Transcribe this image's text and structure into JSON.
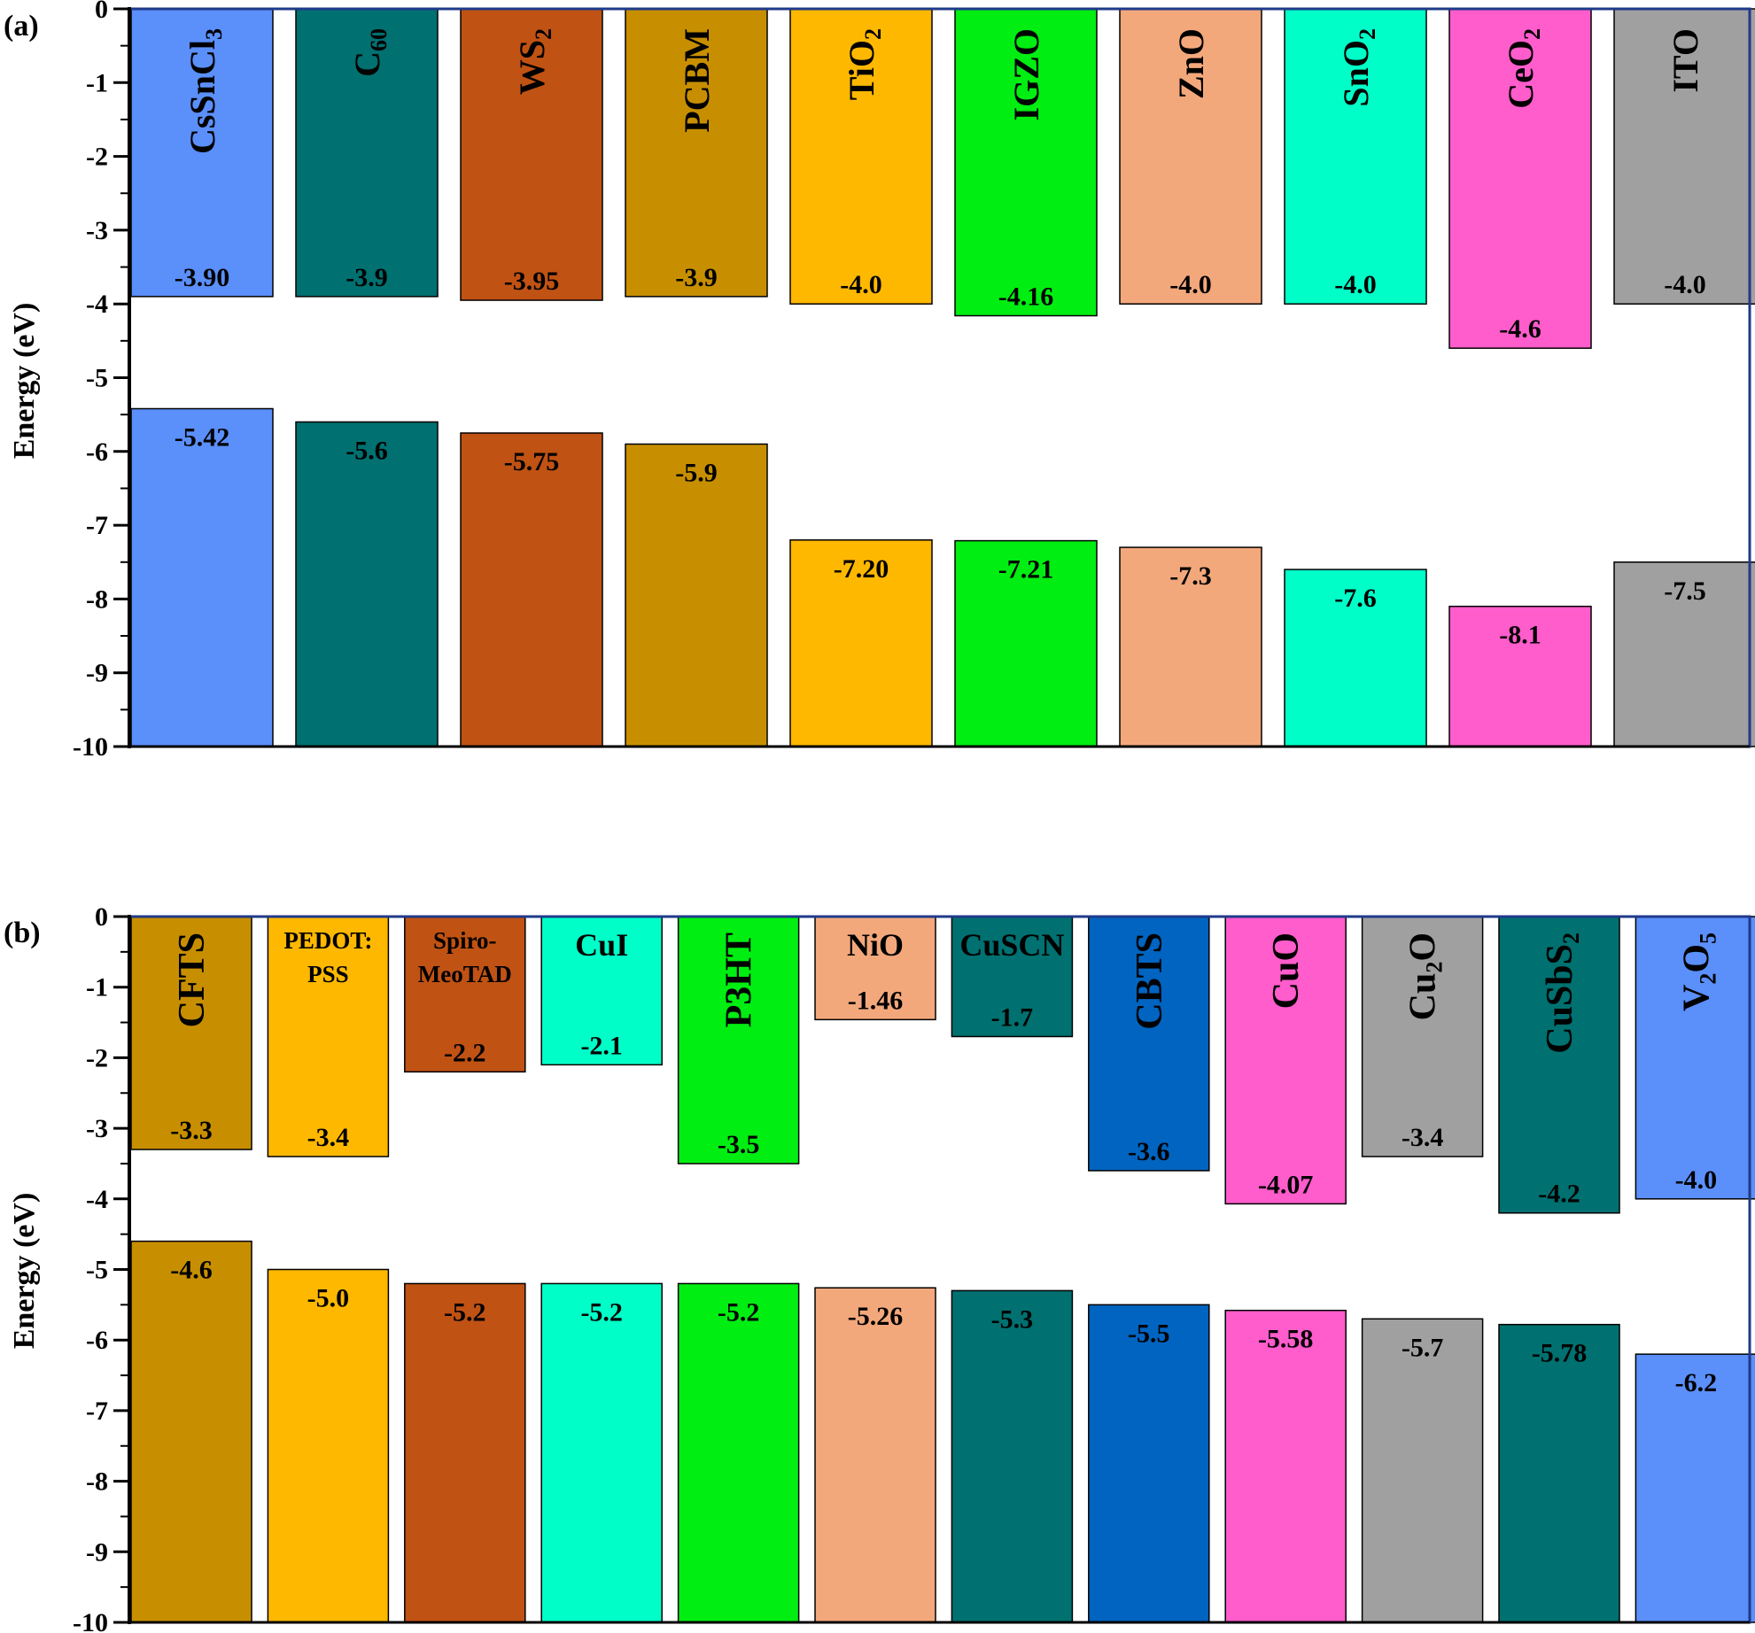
{
  "chart_data": [
    {
      "type": "bar",
      "panel_label": "(a)",
      "ylabel": "Energy (eV)",
      "ylim": [
        -10,
        0
      ],
      "yticks": [
        "0",
        "-1",
        "-2",
        "-3",
        "-4",
        "-5",
        "-6",
        "-7",
        "-8",
        "-9",
        "-10"
      ],
      "grid": false,
      "materials": [
        {
          "name": "CsSnCl3",
          "sub": "3",
          "base": "CsSnCl",
          "cb": -3.9,
          "cb_label": "-3.90",
          "vb": -5.42,
          "vb_label": "-5.42",
          "color": "#5b8ff9"
        },
        {
          "name": "C60",
          "sub": "60",
          "base": "C",
          "cb": -3.9,
          "cb_label": "-3.9",
          "vb": -5.6,
          "vb_label": "-5.6",
          "color": "#007070"
        },
        {
          "name": "WS2",
          "sub": "2",
          "base": "WS",
          "cb": -3.95,
          "cb_label": "-3.95",
          "vb": -5.75,
          "vb_label": "-5.75",
          "color": "#c05214"
        },
        {
          "name": "PCBM",
          "sub": "",
          "base": "PCBM",
          "cb": -3.9,
          "cb_label": "-3.9",
          "vb": -5.9,
          "vb_label": "-5.9",
          "color": "#c78f00"
        },
        {
          "name": "TiO2",
          "sub": "2",
          "base": "TiO",
          "cb": -4.0,
          "cb_label": "-4.0",
          "vb": -7.2,
          "vb_label": "-7.20",
          "color": "#ffb800"
        },
        {
          "name": "IGZO",
          "sub": "",
          "base": "IGZO",
          "cb": -4.16,
          "cb_label": "-4.16",
          "vb": -7.21,
          "vb_label": "-7.21",
          "color": "#00ee11"
        },
        {
          "name": "ZnO",
          "sub": "",
          "base": "ZnO",
          "cb": -4.0,
          "cb_label": "-4.0",
          "vb": -7.3,
          "vb_label": "-7.3",
          "color": "#f3a87c"
        },
        {
          "name": "SnO2",
          "sub": "2",
          "base": "SnO",
          "cb": -4.0,
          "cb_label": "-4.0",
          "vb": -7.6,
          "vb_label": "-7.6",
          "color": "#00ffc8"
        },
        {
          "name": "CeO2",
          "sub": "2",
          "base": "CeO",
          "cb": -4.6,
          "cb_label": "-4.6",
          "vb": -8.1,
          "vb_label": "-8.1",
          "color": "#ff5ccc"
        },
        {
          "name": "ITO",
          "sub": "",
          "base": "ITO",
          "cb": -4.0,
          "cb_label": "-4.0",
          "vb": -7.5,
          "vb_label": "-7.5",
          "color": "#a0a0a0"
        }
      ]
    },
    {
      "type": "bar",
      "panel_label": "(b)",
      "ylabel": "Energy (eV)",
      "ylim": [
        -10,
        0
      ],
      "yticks": [
        "0",
        "-1",
        "-2",
        "-3",
        "-4",
        "-5",
        "-6",
        "-7",
        "-8",
        "-9",
        "-10"
      ],
      "grid": false,
      "materials": [
        {
          "name": "CFTS",
          "base": "CFTS",
          "sub": "",
          "cb": -3.3,
          "cb_label": "-3.3",
          "vb": -4.6,
          "vb_label": "-4.6",
          "color": "#c78f00"
        },
        {
          "name": "PEDOT:PSS",
          "line1": "PEDOT:",
          "line2": "PSS",
          "cb": -3.4,
          "cb_label": "-3.4",
          "vb": -5.0,
          "vb_label": "-5.0",
          "color": "#ffb800"
        },
        {
          "name": "Spiro-MeoTAD",
          "line1": "Spiro-",
          "line2": "MeoTAD",
          "cb": -2.2,
          "cb_label": "-2.2",
          "vb": -5.2,
          "vb_label": "-5.2",
          "color": "#c05214"
        },
        {
          "name": "CuI",
          "line1": "CuI",
          "cb": -2.1,
          "cb_label": "-2.1",
          "vb": -5.2,
          "vb_label": "-5.2",
          "color": "#00ffc8"
        },
        {
          "name": "P3HT",
          "base": "P3HT",
          "sub": "",
          "cb": -3.5,
          "cb_label": "-3.5",
          "vb": -5.2,
          "vb_label": "-5.2",
          "color": "#00ee11"
        },
        {
          "name": "NiO",
          "line1": "NiO",
          "cb": -1.46,
          "cb_label": "-1.46",
          "vb": -5.26,
          "vb_label": "-5.26",
          "color": "#f3a87c"
        },
        {
          "name": "CuSCN",
          "line1": "CuSCN",
          "cb": -1.7,
          "cb_label": "-1.7",
          "vb": -5.3,
          "vb_label": "-5.3",
          "color": "#007070"
        },
        {
          "name": "CBTS",
          "base": "CBTS",
          "sub": "",
          "cb": -3.6,
          "cb_label": "-3.6",
          "vb": -5.5,
          "vb_label": "-5.5",
          "color": "#0064c0"
        },
        {
          "name": "CuO",
          "base": "CuO",
          "sub": "",
          "cb": -4.07,
          "cb_label": "-4.07",
          "vb": -5.58,
          "vb_label": "-5.58",
          "color": "#ff5ccc"
        },
        {
          "name": "Cu2O",
          "base": "Cu",
          "sub": "2",
          "tail": "O",
          "cb": -3.4,
          "cb_label": "-3.4",
          "vb": -5.7,
          "vb_label": "-5.7",
          "color": "#a0a0a0"
        },
        {
          "name": "CuSbS2",
          "base": "CuSbS",
          "sub": "2",
          "cb": -4.2,
          "cb_label": "-4.2",
          "vb": -5.78,
          "vb_label": "-5.78",
          "color": "#007070"
        },
        {
          "name": "V2O5",
          "base": "V",
          "sub": "2",
          "tail": "O",
          "sub2": "5",
          "cb": -4.0,
          "cb_label": "-4.0",
          "vb": -6.2,
          "vb_label": "-6.2",
          "color": "#5b8ff9"
        }
      ]
    }
  ]
}
